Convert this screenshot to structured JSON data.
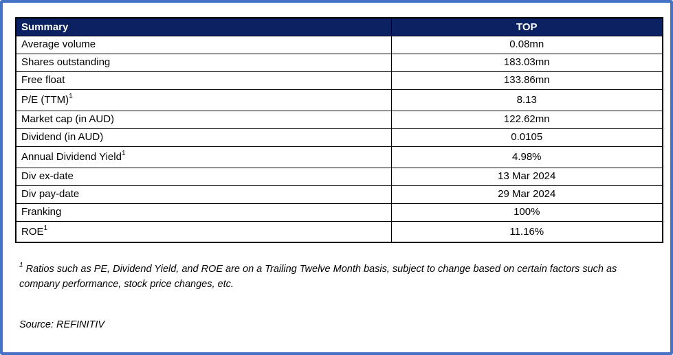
{
  "page": {
    "border_color": "#4472C4",
    "background_color": "#FFFFFF"
  },
  "table": {
    "header": {
      "summary_label": "Summary",
      "value_label": "TOP",
      "bg_color": "#0B2161",
      "text_color": "#FFFFFF"
    },
    "rows": [
      {
        "label": "Average volume",
        "value": "0.08mn"
      },
      {
        "label": "Shares outstanding",
        "value": "183.03mn"
      },
      {
        "label": "Free float",
        "value": "133.86mn"
      },
      {
        "label": "P/E (TTM)",
        "sup": "1",
        "value": "8.13"
      },
      {
        "label": "Market cap (in AUD)",
        "value": "122.62mn"
      },
      {
        "label": "Dividend (in AUD)",
        "value": "0.0105"
      },
      {
        "label": "Annual Dividend Yield",
        "sup": "1",
        "value": "4.98%"
      },
      {
        "label": "Div ex-date",
        "value": "13 Mar 2024"
      },
      {
        "label": "Div pay-date",
        "value": "29 Mar 2024"
      },
      {
        "label": "Franking",
        "value": "100%"
      },
      {
        "label": "ROE",
        "sup": "1",
        "value": "11.16%"
      }
    ]
  },
  "footnote": {
    "sup": "1",
    "text": " Ratios such as PE, Dividend Yield, and ROE are on a Trailing Twelve Month basis, subject to change based on certain factors such as company performance, stock price changes, etc."
  },
  "source": {
    "text": "Source: REFINITIV"
  }
}
